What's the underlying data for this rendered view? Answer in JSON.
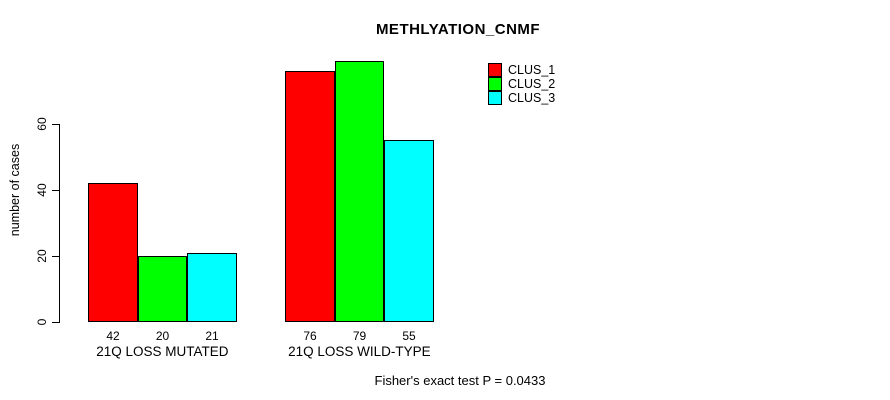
{
  "chart_data": {
    "type": "bar",
    "title": "METHLYATION_CNMF",
    "xlabel": "",
    "ylabel": "number of cases",
    "categories": [
      "21Q LOSS MUTATED",
      "21Q LOSS WILD-TYPE"
    ],
    "series": [
      {
        "name": "CLUS_1",
        "color": "#ff0000",
        "values": [
          42,
          76
        ]
      },
      {
        "name": "CLUS_2",
        "color": "#00ff00",
        "values": [
          20,
          79
        ]
      },
      {
        "name": "CLUS_3",
        "color": "#00ffff",
        "values": [
          21,
          55
        ]
      }
    ],
    "bar_value_labels": [
      [
        42,
        20,
        21
      ],
      [
        76,
        79,
        55
      ]
    ],
    "y_ticks": [
      0,
      20,
      40,
      60
    ],
    "ylim": [
      0,
      60
    ],
    "grid": false,
    "legend_position": "top-right-inside",
    "bar_border_color": "#000000",
    "background_color": "#ffffff",
    "annotation": "Fisher's exact test P = 0.0433"
  }
}
